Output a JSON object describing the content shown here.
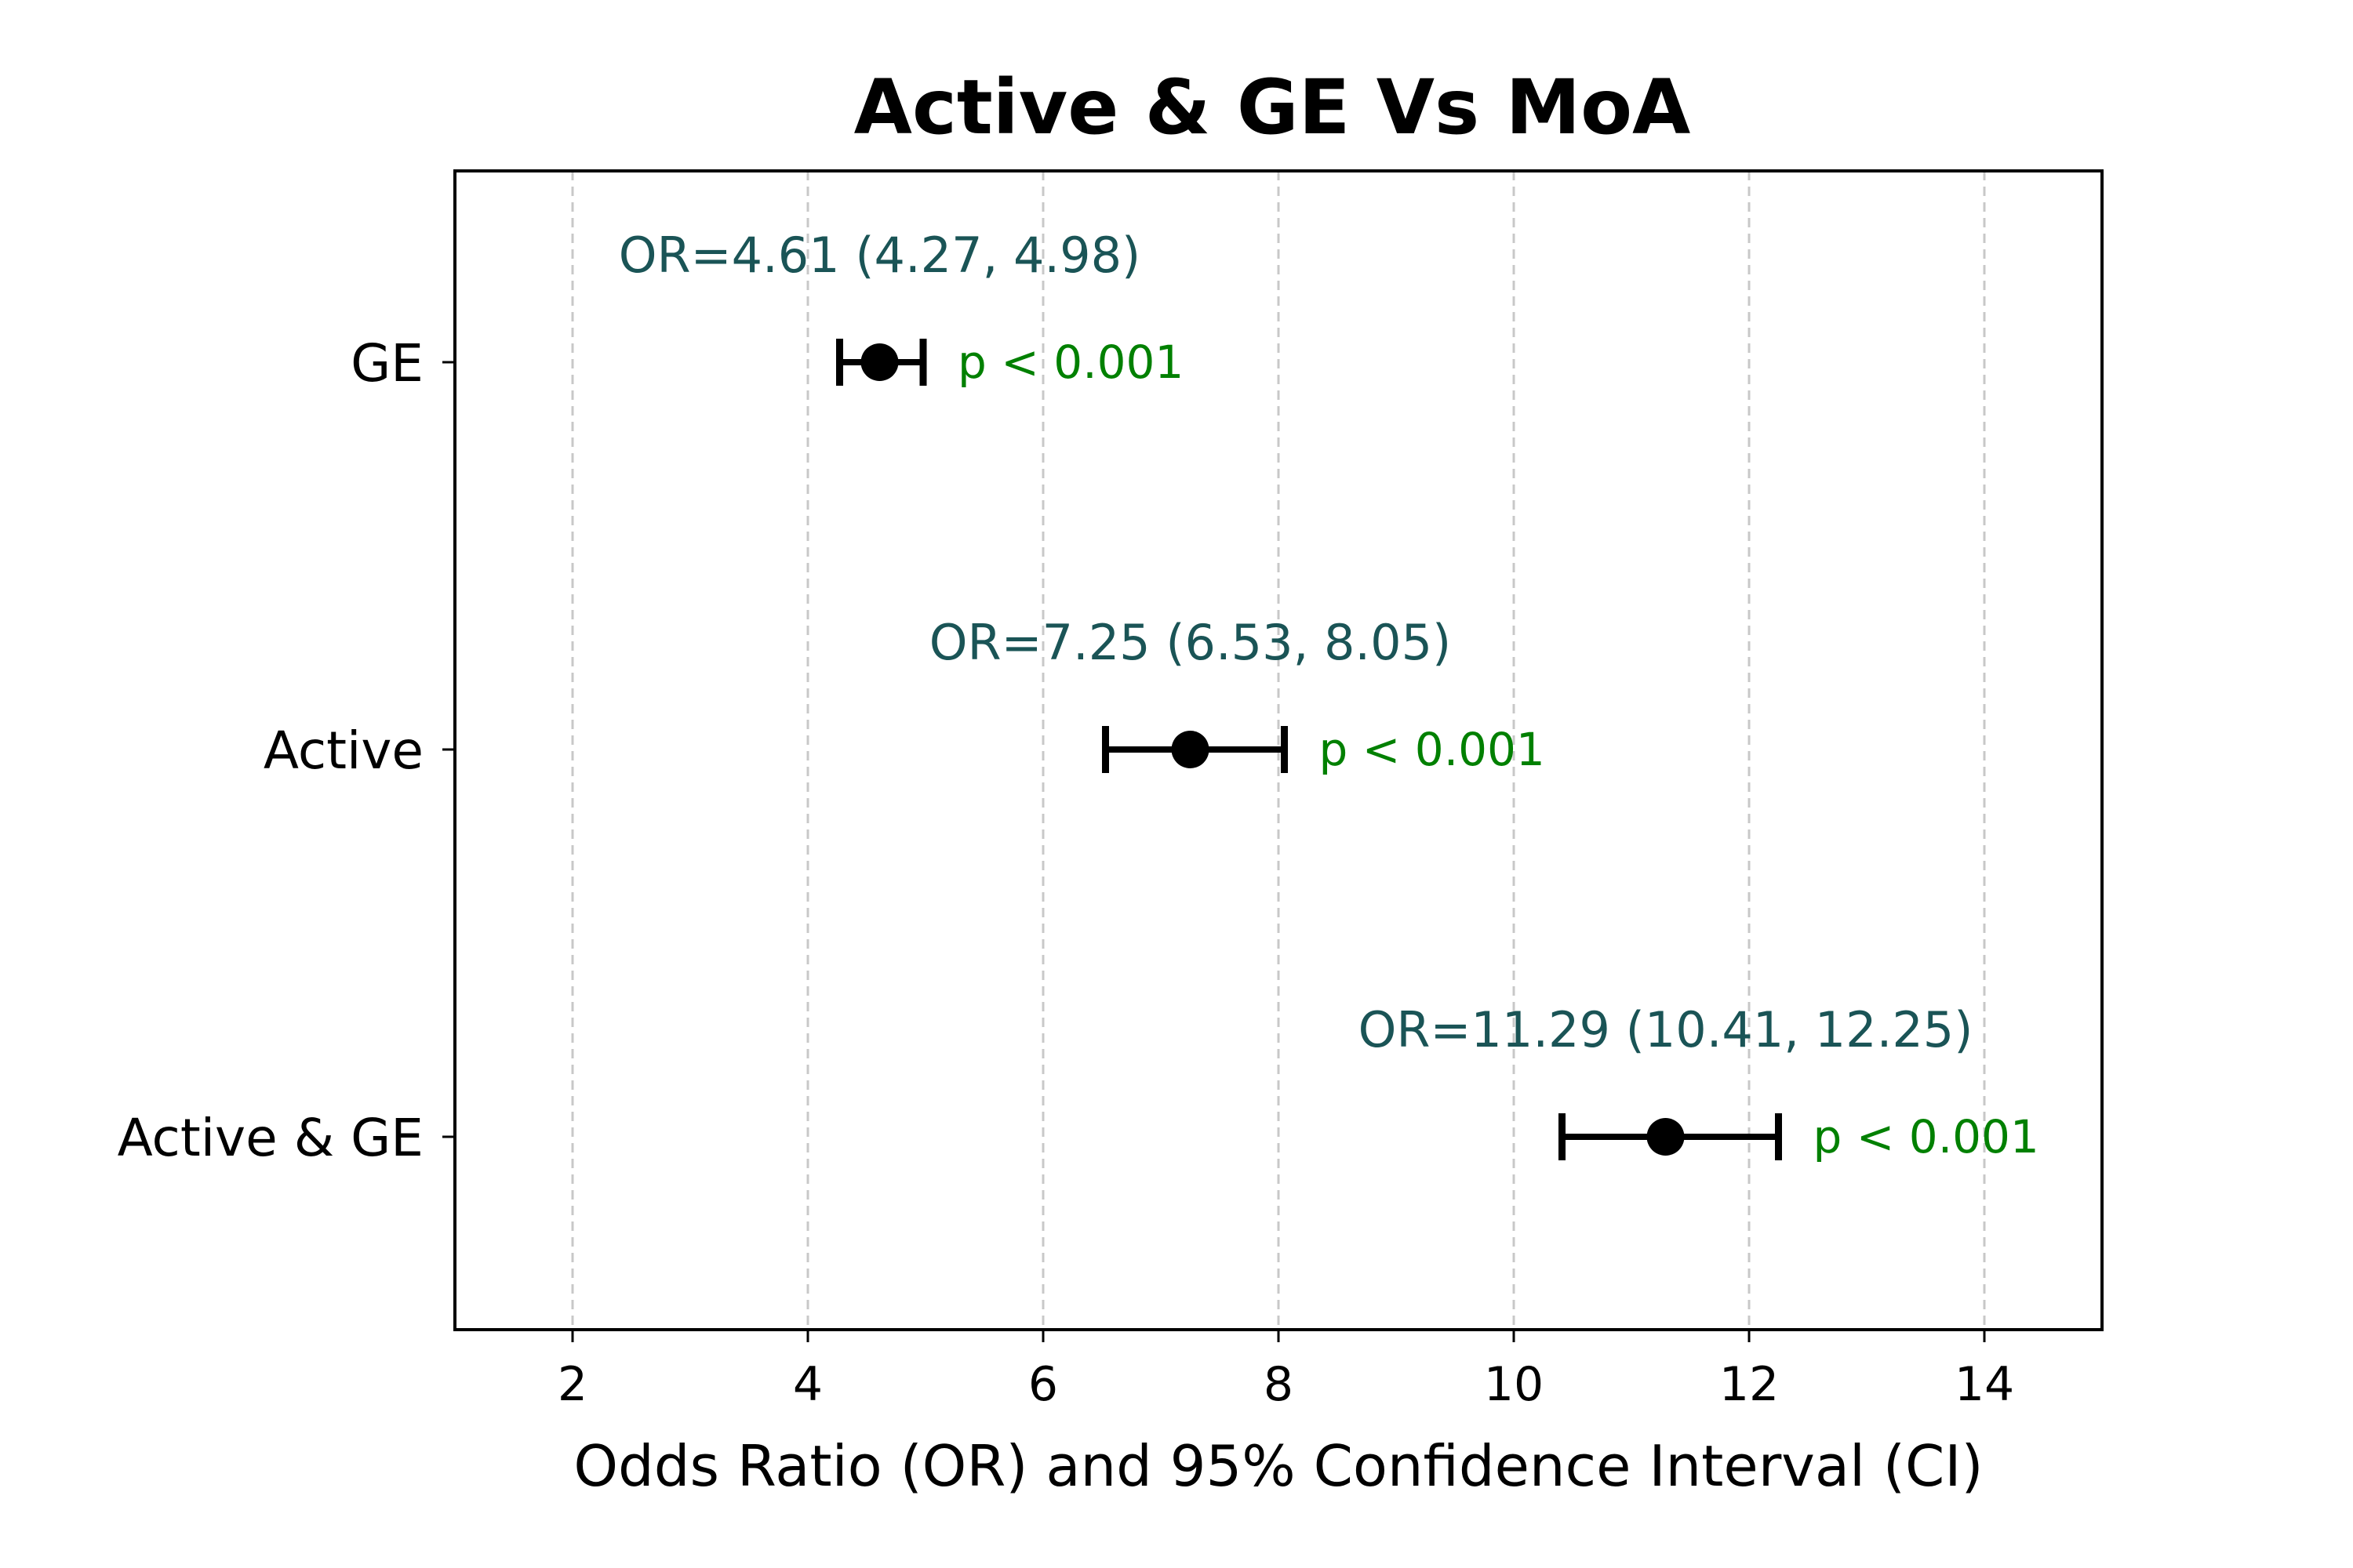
{
  "chart_data": {
    "type": "forest",
    "title": "Active & GE Vs MoA",
    "xlabel": "Odds Ratio (OR) and 95% Confidence Interval (CI)",
    "ylabel": "",
    "xlim": [
      1,
      15
    ],
    "xticks": [
      2,
      4,
      6,
      8,
      10,
      12,
      14
    ],
    "grid": "vertical-dashed",
    "categories": [
      "GE",
      "Active",
      "Active & GE"
    ],
    "rows": [
      {
        "category": "GE",
        "or": 4.61,
        "ci_low": 4.27,
        "ci_high": 4.98,
        "or_label": "OR=4.61 (4.27, 4.98)",
        "p_label": "p < 0.001"
      },
      {
        "category": "Active",
        "or": 7.25,
        "ci_low": 6.53,
        "ci_high": 8.05,
        "or_label": "OR=7.25 (6.53, 8.05)",
        "p_label": "p < 0.001"
      },
      {
        "category": "Active & GE",
        "or": 11.29,
        "ci_low": 10.41,
        "ci_high": 12.25,
        "or_label": "OR=11.29 (10.41, 12.25)",
        "p_label": "p < 0.001"
      }
    ],
    "colors": {
      "point": "#000000",
      "or_label": "#1a5456",
      "p_label": "#008000",
      "grid": "#c8c8c8"
    }
  }
}
